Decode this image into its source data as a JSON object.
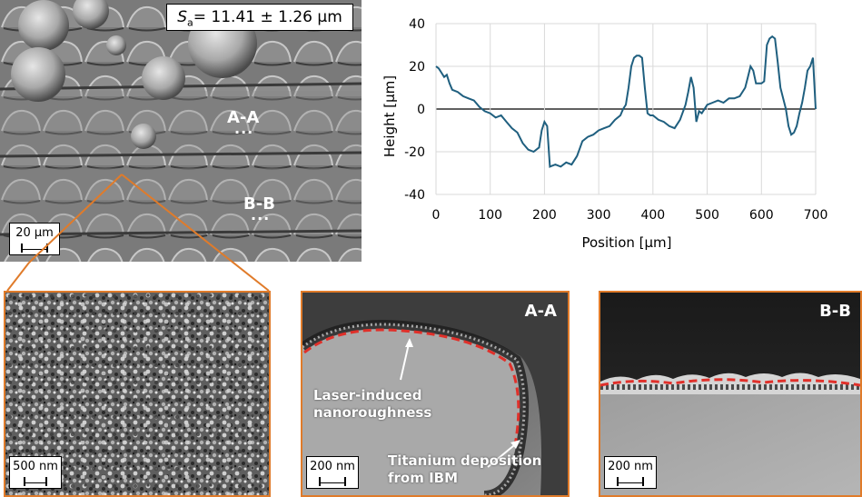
{
  "sem_main": {
    "roughness_prefix": "S",
    "roughness_subscript": "a",
    "roughness_value": "= 11.41 ± 1.26 µm",
    "section_aa": "A-A",
    "section_bb": "B-B",
    "dots": "...",
    "scale_label": "20 µm"
  },
  "panels": {
    "zoom": {
      "scale_label": "500 nm"
    },
    "aa": {
      "title": "A-A",
      "annotation_1_line1": "Laser-induced",
      "annotation_1_line2": "nanoroughness",
      "annotation_2_line1": "Titanium deposition",
      "annotation_2_line2": "from IBM",
      "scale_label": "200 nm"
    },
    "bb": {
      "title": "B-B",
      "scale_label": "200 nm"
    }
  },
  "colors": {
    "accent_orange": "#e07b2a",
    "profile_line": "#1f5f7f",
    "dashed_red": "#e0302a"
  },
  "chart_data": {
    "type": "line",
    "xlabel": "Position [µm]",
    "ylabel": "Height [µm]",
    "xlim": [
      0,
      700
    ],
    "ylim": [
      -40,
      40
    ],
    "xticks": [
      0,
      100,
      200,
      300,
      400,
      500,
      600,
      700
    ],
    "yticks": [
      -40,
      -20,
      0,
      20,
      40
    ],
    "grid": true,
    "series": [
      {
        "x": [
          0,
          5,
          10,
          15,
          20,
          25,
          30,
          40,
          50,
          60,
          70,
          80,
          90,
          100,
          110,
          120,
          130,
          140,
          150,
          160,
          170,
          180,
          190,
          195,
          200,
          205,
          210,
          220,
          230,
          240,
          250,
          260,
          270,
          280,
          290,
          300,
          310,
          320,
          330,
          340,
          345,
          350,
          355,
          360,
          365,
          370,
          375,
          380,
          385,
          390,
          395,
          400,
          410,
          420,
          430,
          440,
          450,
          460,
          465,
          470,
          475,
          480,
          485,
          490,
          500,
          510,
          520,
          530,
          540,
          550,
          560,
          570,
          575,
          580,
          585,
          590,
          600,
          605,
          610,
          615,
          620,
          625,
          630,
          635,
          640,
          645,
          650,
          655,
          660,
          665,
          670,
          675,
          680,
          685,
          690,
          695,
          700
        ],
        "y": [
          20,
          19,
          17,
          15,
          16,
          12,
          9,
          8,
          6,
          5,
          4,
          1,
          -1,
          -2,
          -4,
          -3,
          -6,
          -9,
          -11,
          -16,
          -19,
          -20,
          -18,
          -10,
          -6,
          -8,
          -27,
          -26,
          -27,
          -25,
          -26,
          -22,
          -15,
          -13,
          -12,
          -10,
          -9,
          -8,
          -5,
          -3,
          0,
          2,
          10,
          20,
          24,
          25,
          25,
          24,
          10,
          -2,
          -3,
          -3,
          -5,
          -6,
          -8,
          -9,
          -5,
          2,
          8,
          15,
          10,
          -6,
          -1,
          -2,
          2,
          3,
          4,
          3,
          5,
          5,
          6,
          10,
          15,
          20,
          18,
          12,
          12,
          13,
          30,
          33,
          34,
          33,
          22,
          10,
          5,
          0,
          -8,
          -12,
          -11,
          -8,
          -2,
          3,
          10,
          18,
          20,
          24,
          0
        ]
      }
    ]
  }
}
